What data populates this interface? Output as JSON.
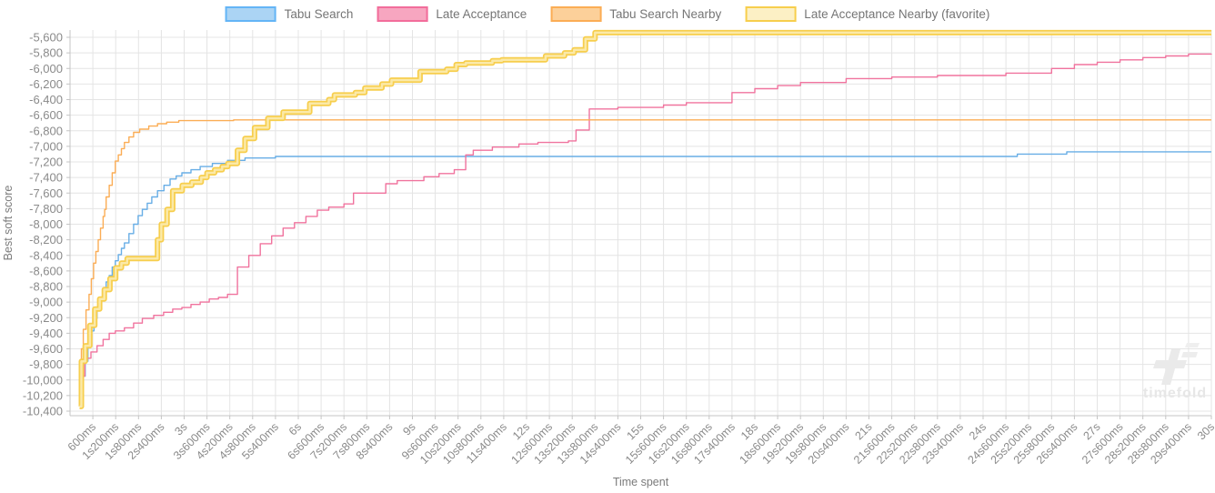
{
  "legend": {
    "items": [
      {
        "label": "Tabu Search",
        "fill": "#abd4f4",
        "border": "#64b5f6"
      },
      {
        "label": "Late Acceptance",
        "fill": "#f7a6c0",
        "border": "#f26d9b"
      },
      {
        "label": "Tabu Search Nearby",
        "fill": "#fcd09a",
        "border": "#fbad55"
      },
      {
        "label": "Late Acceptance Nearby (favorite)",
        "fill": "#fcf0c5",
        "border": "#f7ce4d"
      }
    ]
  },
  "watermark": {
    "text": "timefold"
  },
  "chart_data": {
    "type": "line",
    "title": "",
    "xlabel": "Time spent",
    "ylabel": "Best soft score",
    "step_interpolation": "step-after",
    "grid": true,
    "legend_position": "top-center",
    "x_axis": {
      "min_ms": 0,
      "max_ms": 30000,
      "tick_interval_ms": 600,
      "tick_labels": [
        "600ms",
        "1s200ms",
        "1s800ms",
        "2s400ms",
        "3s",
        "3s600ms",
        "4s200ms",
        "4s800ms",
        "5s400ms",
        "6s",
        "6s600ms",
        "7s200ms",
        "7s800ms",
        "8s400ms",
        "9s",
        "9s600ms",
        "10s200ms",
        "10s800ms",
        "11s400ms",
        "12s",
        "12s600ms",
        "13s200ms",
        "13s800ms",
        "14s400ms",
        "15s",
        "15s600ms",
        "16s200ms",
        "16s800ms",
        "17s400ms",
        "18s",
        "18s600ms",
        "19s200ms",
        "19s800ms",
        "20s400ms",
        "21s",
        "21s600ms",
        "22s200ms",
        "22s800ms",
        "23s400ms",
        "24s",
        "24s600ms",
        "25s200ms",
        "25s800ms",
        "26s400ms",
        "27s",
        "27s600ms",
        "28s200ms",
        "28s800ms",
        "29s400ms",
        "30s"
      ]
    },
    "y_axis": {
      "max": -5600,
      "min": -10400,
      "tick_step": 200,
      "tick_labels": [
        "-5,600",
        "-5,800",
        "-6,000",
        "-6,200",
        "-6,400",
        "-6,600",
        "-6,800",
        "-7,000",
        "-7,200",
        "-7,400",
        "-7,600",
        "-7,800",
        "-8,000",
        "-8,200",
        "-8,400",
        "-8,600",
        "-8,800",
        "-9,000",
        "-9,200",
        "-9,400",
        "-9,600",
        "-9,800",
        "-10,000",
        "-10,200",
        "-10,400"
      ]
    },
    "series": [
      {
        "name": "Tabu Search",
        "color": "#68aee6",
        "line_width": 1.4,
        "final_score": -7070,
        "points": [
          [
            300,
            -10260
          ],
          [
            350,
            -9950
          ],
          [
            400,
            -9760
          ],
          [
            470,
            -9520
          ],
          [
            550,
            -9370
          ],
          [
            630,
            -9210
          ],
          [
            710,
            -9090
          ],
          [
            790,
            -8980
          ],
          [
            870,
            -8820
          ],
          [
            950,
            -8740
          ],
          [
            1030,
            -8660
          ],
          [
            1110,
            -8550
          ],
          [
            1190,
            -8470
          ],
          [
            1270,
            -8390
          ],
          [
            1350,
            -8310
          ],
          [
            1430,
            -8240
          ],
          [
            1550,
            -8120
          ],
          [
            1670,
            -8000
          ],
          [
            1790,
            -7890
          ],
          [
            1900,
            -7810
          ],
          [
            2030,
            -7730
          ],
          [
            2150,
            -7650
          ],
          [
            2300,
            -7570
          ],
          [
            2470,
            -7500
          ],
          [
            2630,
            -7420
          ],
          [
            2790,
            -7380
          ],
          [
            2940,
            -7340
          ],
          [
            3180,
            -7300
          ],
          [
            3420,
            -7260
          ],
          [
            3740,
            -7220
          ],
          [
            4140,
            -7180
          ],
          [
            4600,
            -7150
          ],
          [
            5400,
            -7130
          ],
          [
            24900,
            -7100
          ],
          [
            26200,
            -7070
          ],
          [
            30000,
            -7070
          ]
        ]
      },
      {
        "name": "Late Acceptance",
        "color": "#f0739e",
        "line_width": 1.4,
        "final_score": -5810,
        "points": [
          [
            230,
            -10260
          ],
          [
            280,
            -9950
          ],
          [
            390,
            -9720
          ],
          [
            550,
            -9640
          ],
          [
            710,
            -9560
          ],
          [
            870,
            -9480
          ],
          [
            1030,
            -9400
          ],
          [
            1190,
            -9370
          ],
          [
            1430,
            -9330
          ],
          [
            1670,
            -9270
          ],
          [
            1900,
            -9210
          ],
          [
            2200,
            -9170
          ],
          [
            2460,
            -9130
          ],
          [
            2700,
            -9090
          ],
          [
            2940,
            -9070
          ],
          [
            3180,
            -9030
          ],
          [
            3420,
            -9000
          ],
          [
            3660,
            -8960
          ],
          [
            3900,
            -8940
          ],
          [
            4140,
            -8900
          ],
          [
            4400,
            -8550
          ],
          [
            4700,
            -8400
          ],
          [
            5000,
            -8250
          ],
          [
            5300,
            -8150
          ],
          [
            5600,
            -8050
          ],
          [
            5900,
            -7980
          ],
          [
            6200,
            -7900
          ],
          [
            6500,
            -7820
          ],
          [
            6800,
            -7780
          ],
          [
            7200,
            -7740
          ],
          [
            7450,
            -7600
          ],
          [
            8300,
            -7480
          ],
          [
            8600,
            -7440
          ],
          [
            9300,
            -7390
          ],
          [
            9700,
            -7350
          ],
          [
            10100,
            -7300
          ],
          [
            10400,
            -7110
          ],
          [
            10600,
            -7050
          ],
          [
            11100,
            -7010
          ],
          [
            11800,
            -6970
          ],
          [
            12300,
            -6950
          ],
          [
            13100,
            -6930
          ],
          [
            13300,
            -6790
          ],
          [
            13650,
            -6520
          ],
          [
            14400,
            -6500
          ],
          [
            15600,
            -6470
          ],
          [
            16200,
            -6440
          ],
          [
            17400,
            -6310
          ],
          [
            18000,
            -6260
          ],
          [
            18600,
            -6220
          ],
          [
            19200,
            -6180
          ],
          [
            20400,
            -6130
          ],
          [
            21600,
            -6110
          ],
          [
            22800,
            -6090
          ],
          [
            24600,
            -6060
          ],
          [
            25800,
            -6000
          ],
          [
            26400,
            -5950
          ],
          [
            27000,
            -5920
          ],
          [
            27600,
            -5890
          ],
          [
            28200,
            -5860
          ],
          [
            28800,
            -5840
          ],
          [
            29400,
            -5815
          ],
          [
            30000,
            -5810
          ]
        ]
      },
      {
        "name": "Tabu Search Nearby",
        "color": "#fbad55",
        "line_width": 1.4,
        "final_score": -6660,
        "points": [
          [
            250,
            -10340
          ],
          [
            270,
            -9990
          ],
          [
            300,
            -9600
          ],
          [
            350,
            -9350
          ],
          [
            420,
            -9100
          ],
          [
            500,
            -8900
          ],
          [
            560,
            -8700
          ],
          [
            620,
            -8500
          ],
          [
            680,
            -8350
          ],
          [
            740,
            -8200
          ],
          [
            800,
            -8050
          ],
          [
            870,
            -7900
          ],
          [
            910,
            -7810
          ],
          [
            950,
            -7650
          ],
          [
            1030,
            -7500
          ],
          [
            1110,
            -7340
          ],
          [
            1190,
            -7190
          ],
          [
            1270,
            -7110
          ],
          [
            1350,
            -7030
          ],
          [
            1430,
            -6950
          ],
          [
            1550,
            -6880
          ],
          [
            1670,
            -6820
          ],
          [
            1830,
            -6780
          ],
          [
            2070,
            -6740
          ],
          [
            2300,
            -6710
          ],
          [
            2540,
            -6690
          ],
          [
            2860,
            -6670
          ],
          [
            4300,
            -6660
          ],
          [
            30000,
            -6660
          ]
        ]
      },
      {
        "name": "Late Acceptance Nearby (favorite)",
        "color": "#f7ce4d",
        "inner_color": "#fbe9a8",
        "line_width": 6,
        "favorite": true,
        "final_score": -5540,
        "points": [
          [
            250,
            -10340
          ],
          [
            300,
            -9760
          ],
          [
            400,
            -9560
          ],
          [
            520,
            -9300
          ],
          [
            650,
            -9090
          ],
          [
            780,
            -8960
          ],
          [
            900,
            -8840
          ],
          [
            1050,
            -8700
          ],
          [
            1200,
            -8560
          ],
          [
            1350,
            -8500
          ],
          [
            1500,
            -8440
          ],
          [
            2300,
            -8200
          ],
          [
            2400,
            -8000
          ],
          [
            2550,
            -7810
          ],
          [
            2700,
            -7570
          ],
          [
            2950,
            -7500
          ],
          [
            3200,
            -7460
          ],
          [
            3450,
            -7400
          ],
          [
            3600,
            -7340
          ],
          [
            3800,
            -7300
          ],
          [
            4000,
            -7260
          ],
          [
            4150,
            -7220
          ],
          [
            4400,
            -7050
          ],
          [
            4600,
            -6900
          ],
          [
            4850,
            -6760
          ],
          [
            5200,
            -6640
          ],
          [
            5600,
            -6560
          ],
          [
            6300,
            -6450
          ],
          [
            6800,
            -6400
          ],
          [
            6950,
            -6340
          ],
          [
            7500,
            -6310
          ],
          [
            7750,
            -6250
          ],
          [
            8200,
            -6200
          ],
          [
            8450,
            -6150
          ],
          [
            9200,
            -6040
          ],
          [
            9900,
            -6010
          ],
          [
            10150,
            -5950
          ],
          [
            10400,
            -5930
          ],
          [
            11100,
            -5900
          ],
          [
            11350,
            -5890
          ],
          [
            12500,
            -5840
          ],
          [
            13000,
            -5800
          ],
          [
            13250,
            -5760
          ],
          [
            13550,
            -5620
          ],
          [
            13800,
            -5540
          ],
          [
            30000,
            -5540
          ]
        ]
      }
    ]
  }
}
